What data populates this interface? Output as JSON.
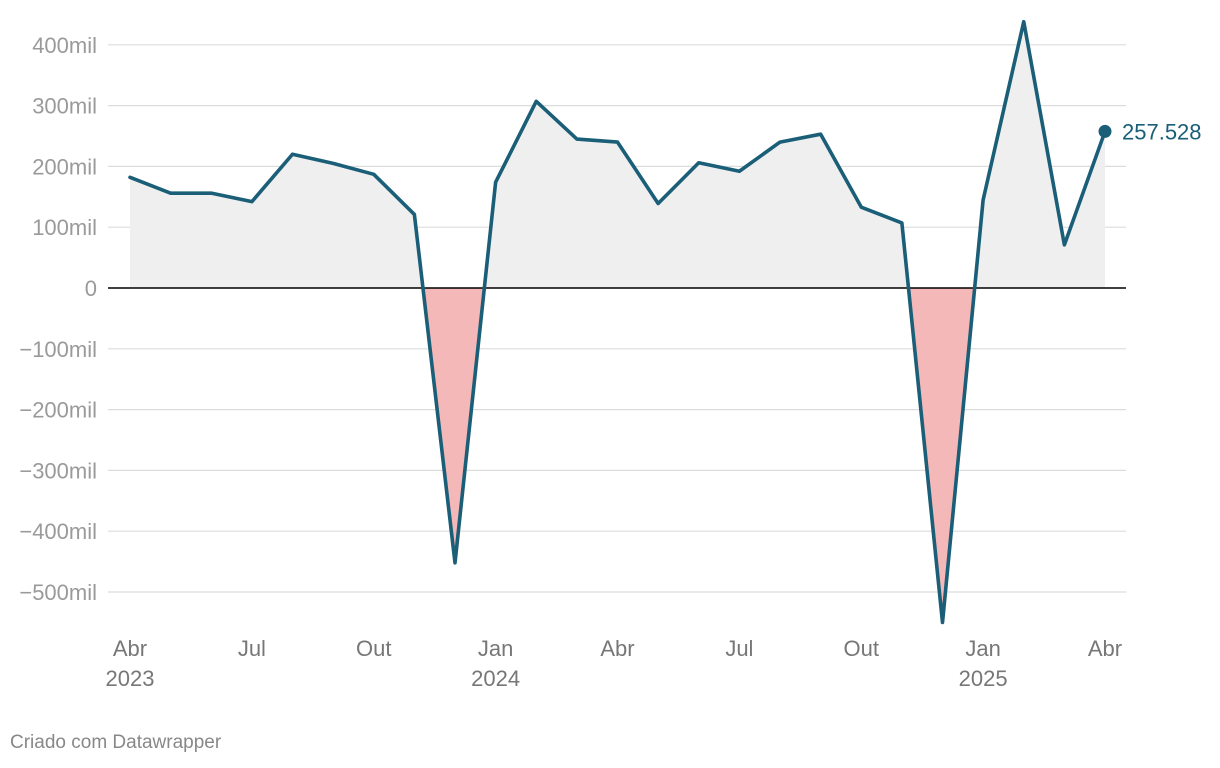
{
  "chart_data": {
    "type": "area",
    "y_tick_labels": [
      "400mil",
      "300mil",
      "200mil",
      "100mil",
      "0",
      "−100mil",
      "−200mil",
      "−300mil",
      "−400mil",
      "−500mil"
    ],
    "y_tick_values": [
      400000,
      300000,
      200000,
      100000,
      0,
      -100000,
      -200000,
      -300000,
      -400000,
      -500000
    ],
    "ylim": [
      -550000,
      440000
    ],
    "x_ticks": [
      {
        "date": "2023-04",
        "label": "Abr",
        "sub": "2023"
      },
      {
        "date": "2023-07",
        "label": "Jul",
        "sub": ""
      },
      {
        "date": "2023-10",
        "label": "Out",
        "sub": ""
      },
      {
        "date": "2024-01",
        "label": "Jan",
        "sub": "2024"
      },
      {
        "date": "2024-04",
        "label": "Abr",
        "sub": ""
      },
      {
        "date": "2024-07",
        "label": "Jul",
        "sub": ""
      },
      {
        "date": "2024-10",
        "label": "Out",
        "sub": ""
      },
      {
        "date": "2025-01",
        "label": "Jan",
        "sub": "2025"
      },
      {
        "date": "2025-04",
        "label": "Abr",
        "sub": ""
      }
    ],
    "x": [
      "2023-04",
      "2023-05",
      "2023-06",
      "2023-07",
      "2023-08",
      "2023-09",
      "2023-10",
      "2023-11",
      "2023-12",
      "2024-01",
      "2024-02",
      "2024-03",
      "2024-04",
      "2024-05",
      "2024-06",
      "2024-07",
      "2024-08",
      "2024-09",
      "2024-10",
      "2024-11",
      "2024-12",
      "2025-01",
      "2025-02",
      "2025-03",
      "2025-04"
    ],
    "series": [
      {
        "values": [
          182000,
          156000,
          156000,
          142000,
          220000,
          205000,
          187000,
          121000,
          -452000,
          174000,
          307000,
          245000,
          240000,
          139000,
          206000,
          192000,
          240000,
          253000,
          133000,
          107000,
          -550000,
          145000,
          438000,
          71000,
          257528
        ]
      }
    ],
    "end_label": "257.528",
    "colors": {
      "line": "#1a5e78",
      "positive_fill": "#efefef",
      "negative_fill": "#f5b8b8",
      "grid": "#dcdcdc",
      "zero_line": "#000000"
    },
    "grid": true
  },
  "credit": "Criado com Datawrapper"
}
